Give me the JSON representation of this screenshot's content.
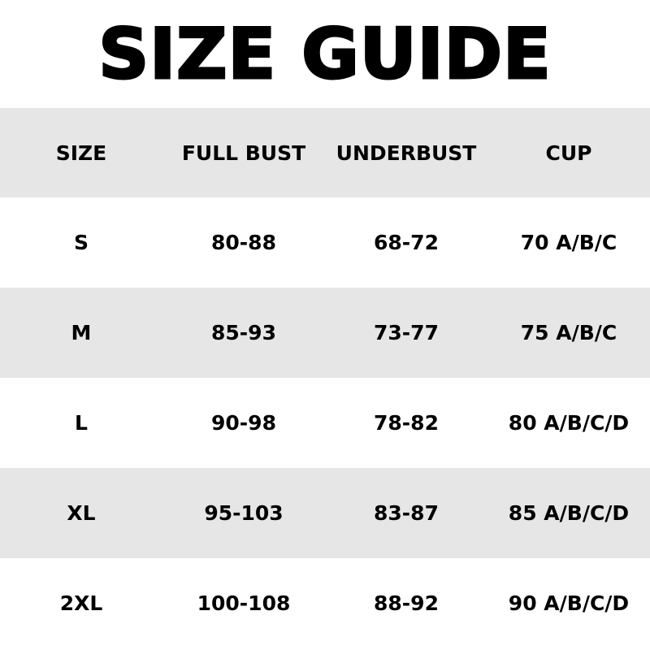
{
  "title": "SIZE GUIDE",
  "colors": {
    "stripe": "#e6e6e6",
    "text": "#000000",
    "background": "#ffffff"
  },
  "table": {
    "headers": [
      "SIZE",
      "FULL BUST",
      "UNDERBUST",
      "CUP"
    ],
    "rows": [
      [
        "S",
        "80-88",
        "68-72",
        "70 A/B/C"
      ],
      [
        "M",
        "85-93",
        "73-77",
        "75 A/B/C"
      ],
      [
        "L",
        "90-98",
        "78-82",
        "80 A/B/C/D"
      ],
      [
        "XL",
        "95-103",
        "83-87",
        "85 A/B/C/D"
      ],
      [
        "2XL",
        "100-108",
        "88-92",
        "90 A/B/C/D"
      ]
    ]
  }
}
